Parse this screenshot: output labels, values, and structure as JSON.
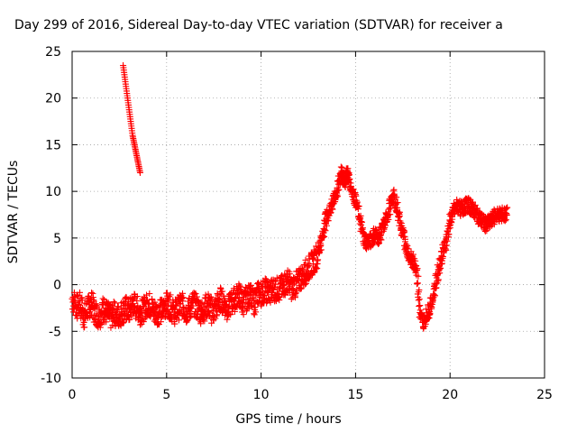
{
  "chart_data": {
    "type": "scatter",
    "title": "Day 299 of 2016, Sidereal Day-to-day VTEC variation (SDTVAR) for receiver a",
    "xlabel": "GPS time / hours",
    "ylabel": "SDTVAR / TECUs",
    "xlim": [
      0,
      25
    ],
    "ylim": [
      -10,
      25
    ],
    "xticks": [
      "0",
      "5",
      "10",
      "15",
      "20",
      "25"
    ],
    "yticks": [
      "-10",
      "-5",
      "0",
      "5",
      "10",
      "15",
      "20",
      "25"
    ],
    "grid": true,
    "marker": "+",
    "color": "#ff0000",
    "series": [
      {
        "x": [
          0.0,
          0.2,
          0.4,
          0.6,
          0.8,
          1.0,
          1.2,
          1.4,
          1.6,
          1.8,
          2.0,
          2.2,
          2.4,
          2.6,
          2.8,
          3.0,
          3.2,
          3.4,
          3.6,
          3.8,
          4.0,
          4.2,
          4.4,
          4.6,
          4.8,
          5.0,
          5.2,
          5.4,
          5.6,
          5.8,
          6.0,
          6.2,
          6.4,
          6.6,
          6.8,
          7.0,
          7.2,
          7.4,
          7.6,
          7.8,
          8.0,
          8.2,
          8.4,
          8.6,
          8.8,
          9.0,
          9.2,
          9.4,
          9.6,
          9.8,
          10.0,
          10.2,
          10.4,
          10.6,
          10.8,
          11.0,
          11.2,
          11.4,
          11.6,
          11.8,
          12.0,
          12.2,
          12.4,
          12.6,
          12.8,
          13.0,
          13.2,
          13.4,
          13.6,
          13.8,
          14.0,
          14.2,
          14.3,
          14.4,
          14.5,
          14.6,
          14.8,
          15.0,
          15.2,
          15.4,
          15.6,
          15.8,
          16.0,
          16.2,
          16.4,
          16.6,
          16.8,
          17.0,
          17.2,
          17.4,
          17.6,
          17.8,
          18.0,
          18.2,
          18.4,
          18.6,
          18.8,
          19.0,
          19.2,
          19.4,
          19.6,
          19.8,
          20.0,
          20.2,
          20.4,
          20.6,
          20.8,
          21.0,
          21.2,
          21.4,
          21.6,
          21.8,
          22.0,
          22.2,
          22.4,
          22.6,
          22.8,
          23.0
        ],
        "y": [
          -1.5,
          -2.5,
          -2.0,
          -3.5,
          -2.5,
          -2.0,
          -3.0,
          -3.5,
          -2.5,
          -3.0,
          -3.5,
          -3.0,
          -3.5,
          -3.0,
          -2.5,
          -3.0,
          -2.0,
          -2.5,
          -3.0,
          -2.5,
          -2.0,
          -2.5,
          -3.0,
          -3.0,
          -2.5,
          -2.0,
          -2.5,
          -3.0,
          -2.5,
          -2.0,
          -3.0,
          -2.5,
          -2.0,
          -2.5,
          -3.0,
          -2.5,
          -2.0,
          -3.0,
          -2.5,
          -1.5,
          -2.0,
          -2.5,
          -2.0,
          -1.5,
          -1.0,
          -2.0,
          -1.5,
          -1.0,
          -2.0,
          -1.0,
          -1.0,
          -0.5,
          -1.0,
          -0.5,
          -0.5,
          -0.5,
          0.0,
          0.5,
          -0.5,
          0.0,
          0.5,
          1.0,
          1.5,
          2.0,
          2.5,
          3.5,
          5.0,
          7.0,
          8.0,
          9.0,
          10.0,
          12.0,
          11.5,
          11.0,
          12.0,
          11.5,
          10.0,
          9.0,
          7.0,
          5.0,
          4.5,
          4.8,
          5.5,
          5.0,
          6.0,
          7.0,
          8.5,
          9.5,
          8.0,
          6.0,
          4.5,
          3.0,
          2.5,
          2.0,
          -3.5,
          -4.0,
          -3.0,
          -2.0,
          0.0,
          2.0,
          3.5,
          5.0,
          7.0,
          8.0,
          8.5,
          8.0,
          8.5,
          8.5,
          8.0,
          7.5,
          7.0,
          6.5,
          6.5,
          7.0,
          7.5,
          7.5,
          7.5,
          7.5
        ],
        "name": ""
      }
    ],
    "scatter_clouds": [
      {
        "xrange": [
          2.7,
          3.6
        ],
        "yrange": [
          12.0,
          23.5
        ],
        "description_points": [
          [
            2.7,
            23.5
          ],
          [
            2.8,
            22.0
          ],
          [
            2.9,
            20.5
          ],
          [
            3.0,
            19.0
          ],
          [
            3.1,
            17.5
          ],
          [
            3.2,
            16.0
          ],
          [
            3.3,
            15.0
          ],
          [
            3.4,
            14.0
          ],
          [
            3.5,
            13.0
          ],
          [
            3.6,
            12.0
          ]
        ]
      }
    ]
  }
}
